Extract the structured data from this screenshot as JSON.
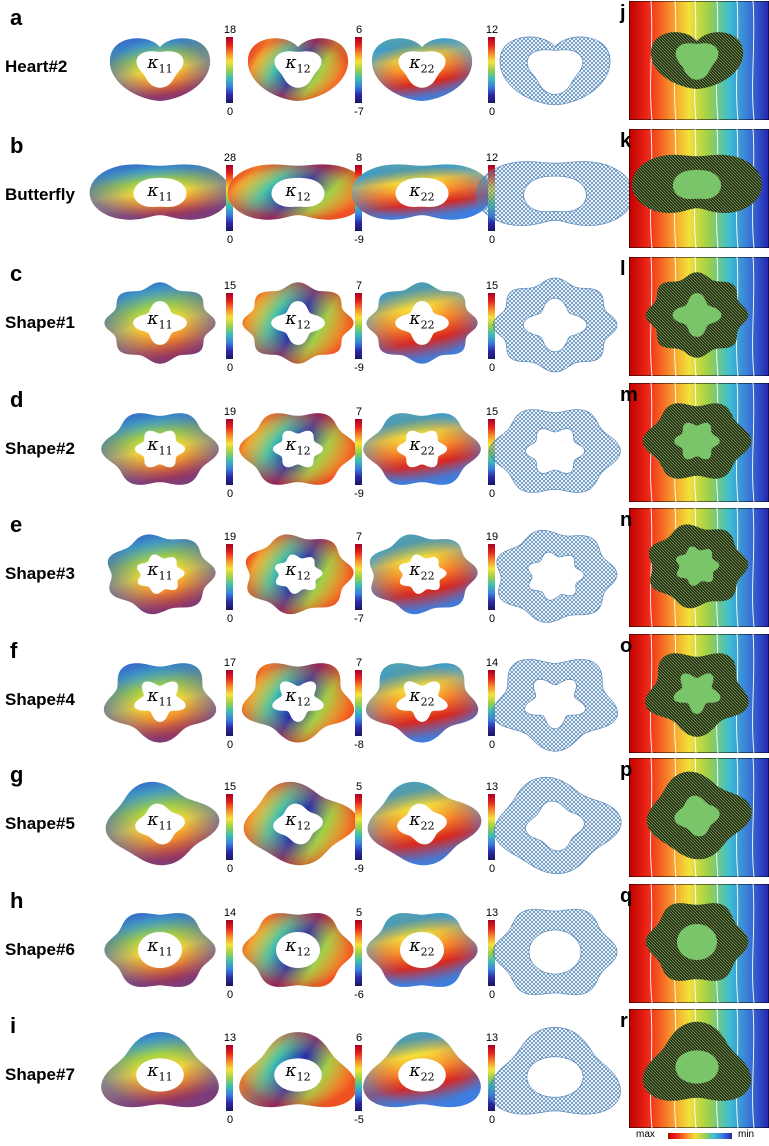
{
  "rows": [
    {
      "letter": "a",
      "name": "Heart#2",
      "sim_letter": "j",
      "k11": {
        "max": "18",
        "min": "0"
      },
      "k12": {
        "max": "6",
        "min": "-7"
      },
      "k22": {
        "max": "12",
        "min": "0"
      }
    },
    {
      "letter": "b",
      "name": "Butterfly",
      "sim_letter": "k",
      "k11": {
        "max": "28",
        "min": "0"
      },
      "k12": {
        "max": "8",
        "min": "-9"
      },
      "k22": {
        "max": "12",
        "min": "0"
      }
    },
    {
      "letter": "c",
      "name": "Shape#1",
      "sim_letter": "l",
      "k11": {
        "max": "15",
        "min": "0"
      },
      "k12": {
        "max": "7",
        "min": "-9"
      },
      "k22": {
        "max": "15",
        "min": "0"
      }
    },
    {
      "letter": "d",
      "name": "Shape#2",
      "sim_letter": "m",
      "k11": {
        "max": "19",
        "min": "0"
      },
      "k12": {
        "max": "7",
        "min": "-9"
      },
      "k22": {
        "max": "15",
        "min": "0"
      }
    },
    {
      "letter": "e",
      "name": "Shape#3",
      "sim_letter": "n",
      "k11": {
        "max": "19",
        "min": "0"
      },
      "k12": {
        "max": "7",
        "min": "-7"
      },
      "k22": {
        "max": "19",
        "min": "0"
      }
    },
    {
      "letter": "f",
      "name": "Shape#4",
      "sim_letter": "o",
      "k11": {
        "max": "17",
        "min": "0"
      },
      "k12": {
        "max": "7",
        "min": "-8"
      },
      "k22": {
        "max": "14",
        "min": "0"
      }
    },
    {
      "letter": "g",
      "name": "Shape#5",
      "sim_letter": "p",
      "k11": {
        "max": "15",
        "min": "0"
      },
      "k12": {
        "max": "5",
        "min": "-9"
      },
      "k22": {
        "max": "13",
        "min": "0"
      }
    },
    {
      "letter": "h",
      "name": "Shape#6",
      "sim_letter": "q",
      "k11": {
        "max": "14",
        "min": "0"
      },
      "k12": {
        "max": "5",
        "min": "-6"
      },
      "k22": {
        "max": "13",
        "min": "0"
      }
    },
    {
      "letter": "i",
      "name": "Shape#7",
      "sim_letter": "r",
      "k11": {
        "max": "13",
        "min": "0"
      },
      "k12": {
        "max": "6",
        "min": "-5"
      },
      "k22": {
        "max": "13",
        "min": "0"
      }
    }
  ],
  "kappa_symbol": "κ",
  "kappa_subscripts": [
    "11",
    "12",
    "22"
  ],
  "legend": {
    "max_label": "max",
    "min_label": "min"
  },
  "colors": {
    "colormap": [
      "#a50026",
      "#e8221c",
      "#f88a2a",
      "#f5e33a",
      "#9bd04a",
      "#3dbfb0",
      "#3c7fe0",
      "#2a2aa8"
    ],
    "lattice_line": "#4a7fb5",
    "inclusion": "#7ac46a",
    "mesh": "#1a2a10"
  }
}
